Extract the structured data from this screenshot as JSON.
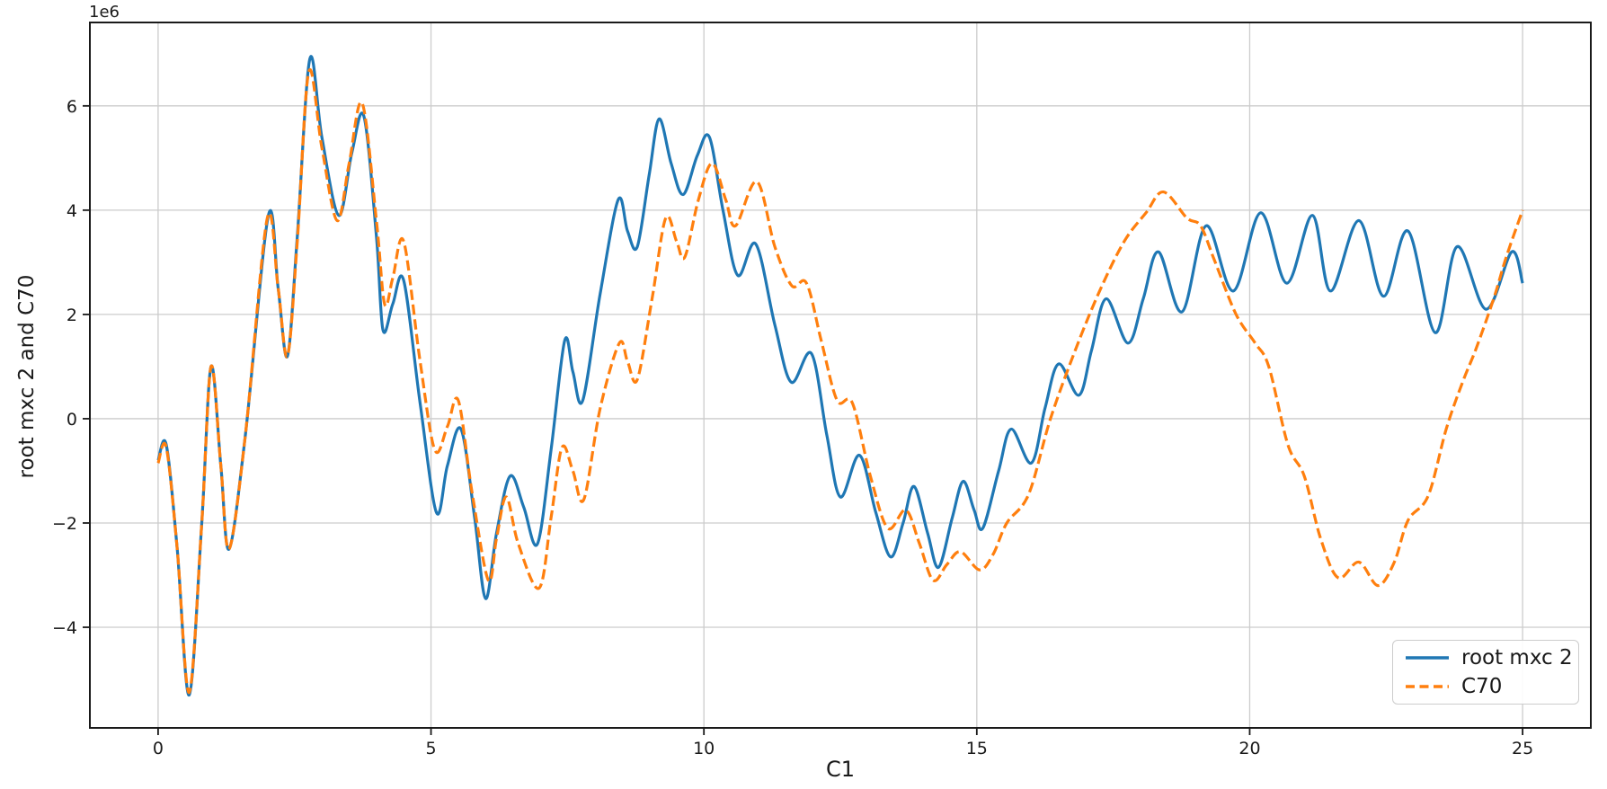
{
  "chart_data": {
    "type": "line",
    "title": "",
    "xlabel": "C1",
    "ylabel": "root mxc 2 and C70",
    "y_offset_text": "1e6",
    "y_unit_multiplier": 1000000,
    "xlim": [
      -1.25,
      26.25
    ],
    "ylim": [
      -5.93,
      7.6
    ],
    "xticks": [
      0,
      5,
      10,
      15,
      20,
      25
    ],
    "yticks": [
      -4,
      -2,
      0,
      2,
      4,
      6
    ],
    "grid": true,
    "grid_color": "#cccccc",
    "spine_color": "#1a1a1a",
    "legend": {
      "position": "lower right",
      "entries": [
        "root mxc 2",
        "C70"
      ]
    },
    "series": [
      {
        "name": "root mxc 2",
        "color": "#1f77b4",
        "style": "solid",
        "points": [
          [
            0,
            -0.8
          ],
          [
            0.15,
            -0.5
          ],
          [
            0.35,
            -2.5
          ],
          [
            0.57,
            -5.3
          ],
          [
            0.8,
            -2.0
          ],
          [
            0.97,
            1.0
          ],
          [
            1.15,
            -0.9
          ],
          [
            1.3,
            -2.5
          ],
          [
            1.6,
            -0.3
          ],
          [
            2.02,
            3.9
          ],
          [
            2.2,
            2.5
          ],
          [
            2.37,
            1.2
          ],
          [
            2.55,
            3.5
          ],
          [
            2.78,
            6.9
          ],
          [
            3.0,
            5.4
          ],
          [
            3.31,
            3.9
          ],
          [
            3.55,
            5.1
          ],
          [
            3.77,
            5.8
          ],
          [
            4.0,
            3.5
          ],
          [
            4.12,
            1.7
          ],
          [
            4.3,
            2.2
          ],
          [
            4.5,
            2.65
          ],
          [
            4.8,
            0.3
          ],
          [
            5.1,
            -1.8
          ],
          [
            5.3,
            -0.9
          ],
          [
            5.55,
            -0.2
          ],
          [
            5.8,
            -1.9
          ],
          [
            6.0,
            -3.45
          ],
          [
            6.2,
            -2.2
          ],
          [
            6.45,
            -1.1
          ],
          [
            6.7,
            -1.7
          ],
          [
            6.95,
            -2.4
          ],
          [
            7.2,
            -0.6
          ],
          [
            7.45,
            1.5
          ],
          [
            7.6,
            0.9
          ],
          [
            7.78,
            0.35
          ],
          [
            8.1,
            2.4
          ],
          [
            8.43,
            4.2
          ],
          [
            8.6,
            3.6
          ],
          [
            8.78,
            3.3
          ],
          [
            9.0,
            4.7
          ],
          [
            9.18,
            5.75
          ],
          [
            9.4,
            4.9
          ],
          [
            9.62,
            4.3
          ],
          [
            9.88,
            5.05
          ],
          [
            10.1,
            5.4
          ],
          [
            10.35,
            4.0
          ],
          [
            10.62,
            2.75
          ],
          [
            10.95,
            3.35
          ],
          [
            11.3,
            1.8
          ],
          [
            11.6,
            0.7
          ],
          [
            11.97,
            1.25
          ],
          [
            12.25,
            -0.3
          ],
          [
            12.5,
            -1.5
          ],
          [
            12.85,
            -0.7
          ],
          [
            13.15,
            -1.8
          ],
          [
            13.42,
            -2.65
          ],
          [
            13.65,
            -2.0
          ],
          [
            13.85,
            -1.3
          ],
          [
            14.1,
            -2.2
          ],
          [
            14.3,
            -2.85
          ],
          [
            14.55,
            -1.9
          ],
          [
            14.75,
            -1.2
          ],
          [
            14.95,
            -1.75
          ],
          [
            15.11,
            -2.1
          ],
          [
            15.4,
            -1.0
          ],
          [
            15.63,
            -0.2
          ],
          [
            16.0,
            -0.85
          ],
          [
            16.25,
            0.2
          ],
          [
            16.5,
            1.05
          ],
          [
            16.87,
            0.45
          ],
          [
            17.1,
            1.3
          ],
          [
            17.37,
            2.3
          ],
          [
            17.77,
            1.45
          ],
          [
            18.05,
            2.3
          ],
          [
            18.33,
            3.2
          ],
          [
            18.76,
            2.05
          ],
          [
            19.2,
            3.7
          ],
          [
            19.7,
            2.45
          ],
          [
            20.2,
            3.95
          ],
          [
            20.68,
            2.6
          ],
          [
            21.15,
            3.9
          ],
          [
            21.48,
            2.45
          ],
          [
            22.0,
            3.8
          ],
          [
            22.45,
            2.35
          ],
          [
            22.9,
            3.6
          ],
          [
            23.4,
            1.65
          ],
          [
            23.8,
            3.3
          ],
          [
            24.33,
            2.1
          ],
          [
            24.8,
            3.2
          ],
          [
            25,
            2.6
          ]
        ]
      },
      {
        "name": "C70",
        "color": "#ff7f0e",
        "style": "dashed",
        "points": [
          [
            0,
            -0.85
          ],
          [
            0.15,
            -0.55
          ],
          [
            0.35,
            -2.5
          ],
          [
            0.57,
            -5.25
          ],
          [
            0.8,
            -2.0
          ],
          [
            0.97,
            1.0
          ],
          [
            1.15,
            -0.9
          ],
          [
            1.3,
            -2.5
          ],
          [
            1.6,
            -0.3
          ],
          [
            2.0,
            3.85
          ],
          [
            2.2,
            2.5
          ],
          [
            2.37,
            1.2
          ],
          [
            2.55,
            3.4
          ],
          [
            2.76,
            6.65
          ],
          [
            3.0,
            5.2
          ],
          [
            3.28,
            3.8
          ],
          [
            3.5,
            4.9
          ],
          [
            3.74,
            6.05
          ],
          [
            4.0,
            3.8
          ],
          [
            4.15,
            2.2
          ],
          [
            4.3,
            2.7
          ],
          [
            4.5,
            3.4
          ],
          [
            4.8,
            1.1
          ],
          [
            5.07,
            -0.6
          ],
          [
            5.3,
            -0.15
          ],
          [
            5.5,
            0.35
          ],
          [
            5.75,
            -1.4
          ],
          [
            6.05,
            -3.1
          ],
          [
            6.2,
            -2.3
          ],
          [
            6.38,
            -1.5
          ],
          [
            6.6,
            -2.4
          ],
          [
            6.98,
            -3.25
          ],
          [
            7.2,
            -1.9
          ],
          [
            7.4,
            -0.55
          ],
          [
            7.6,
            -1.0
          ],
          [
            7.8,
            -1.55
          ],
          [
            8.1,
            0.2
          ],
          [
            8.45,
            1.45
          ],
          [
            8.6,
            1.1
          ],
          [
            8.78,
            0.75
          ],
          [
            9.05,
            2.3
          ],
          [
            9.3,
            3.85
          ],
          [
            9.5,
            3.4
          ],
          [
            9.65,
            3.1
          ],
          [
            9.9,
            4.2
          ],
          [
            10.15,
            4.9
          ],
          [
            10.4,
            4.2
          ],
          [
            10.58,
            3.7
          ],
          [
            10.97,
            4.55
          ],
          [
            11.3,
            3.3
          ],
          [
            11.61,
            2.55
          ],
          [
            11.88,
            2.6
          ],
          [
            12.15,
            1.5
          ],
          [
            12.44,
            0.35
          ],
          [
            12.72,
            0.3
          ],
          [
            13.05,
            -1.1
          ],
          [
            13.37,
            -2.1
          ],
          [
            13.7,
            -1.75
          ],
          [
            13.95,
            -2.4
          ],
          [
            14.2,
            -3.1
          ],
          [
            14.45,
            -2.8
          ],
          [
            14.7,
            -2.55
          ],
          [
            15.05,
            -2.9
          ],
          [
            15.3,
            -2.6
          ],
          [
            15.55,
            -2.0
          ],
          [
            15.95,
            -1.45
          ],
          [
            16.35,
            0.0
          ],
          [
            16.8,
            1.3
          ],
          [
            17.25,
            2.45
          ],
          [
            17.7,
            3.4
          ],
          [
            18.1,
            3.95
          ],
          [
            18.42,
            4.35
          ],
          [
            18.85,
            3.85
          ],
          [
            19.1,
            3.7
          ],
          [
            19.35,
            3.05
          ],
          [
            19.75,
            2.0
          ],
          [
            20.1,
            1.45
          ],
          [
            20.35,
            1.0
          ],
          [
            20.7,
            -0.5
          ],
          [
            21.0,
            -1.1
          ],
          [
            21.3,
            -2.3
          ],
          [
            21.62,
            -3.05
          ],
          [
            22.0,
            -2.75
          ],
          [
            22.35,
            -3.2
          ],
          [
            22.65,
            -2.75
          ],
          [
            22.9,
            -1.95
          ],
          [
            23.27,
            -1.48
          ],
          [
            23.6,
            -0.2
          ],
          [
            23.9,
            0.7
          ],
          [
            24.15,
            1.35
          ],
          [
            24.47,
            2.3
          ],
          [
            24.7,
            3.1
          ],
          [
            25,
            4.0
          ]
        ]
      }
    ]
  }
}
